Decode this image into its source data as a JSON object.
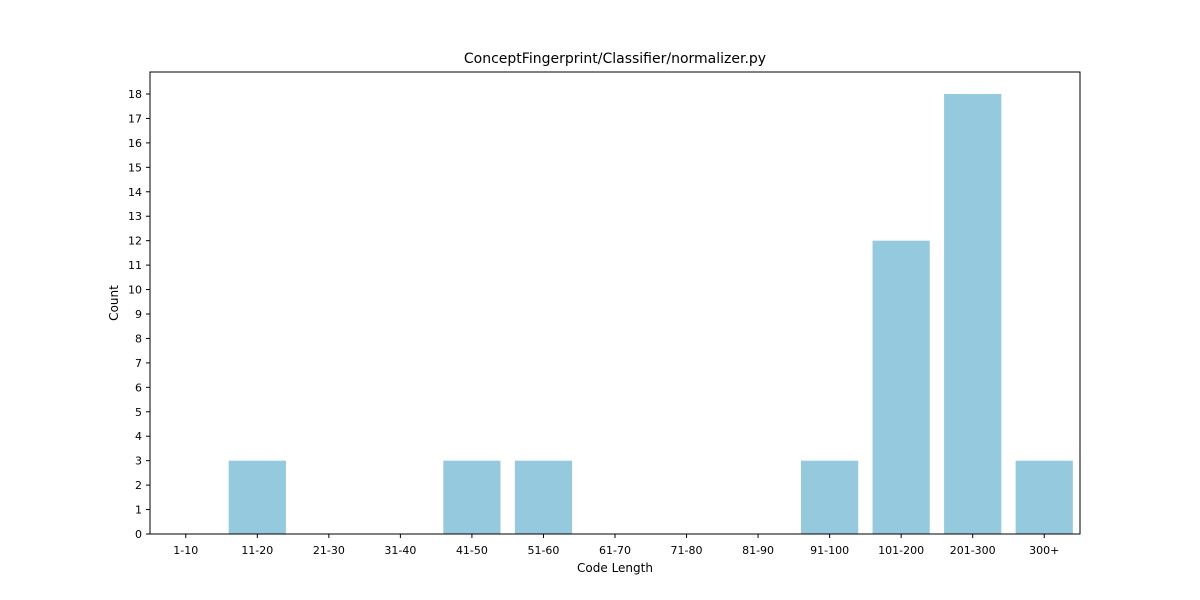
{
  "chart_data": {
    "type": "bar",
    "title": "ConceptFingerprint/Classifier/normalizer.py",
    "xlabel": "Code Length",
    "ylabel": "Count",
    "categories": [
      "1-10",
      "11-20",
      "21-30",
      "31-40",
      "41-50",
      "51-60",
      "61-70",
      "71-80",
      "81-90",
      "91-100",
      "101-200",
      "201-300",
      "300+"
    ],
    "values": [
      0,
      3,
      0,
      0,
      3,
      3,
      0,
      0,
      0,
      3,
      12,
      18,
      3
    ],
    "ylim": [
      0,
      18.9
    ],
    "yticks": [
      0,
      1,
      2,
      3,
      4,
      5,
      6,
      7,
      8,
      9,
      10,
      11,
      12,
      13,
      14,
      15,
      16,
      17,
      18
    ],
    "bar_color": "#95c9de",
    "grid": false,
    "legend": "none"
  }
}
